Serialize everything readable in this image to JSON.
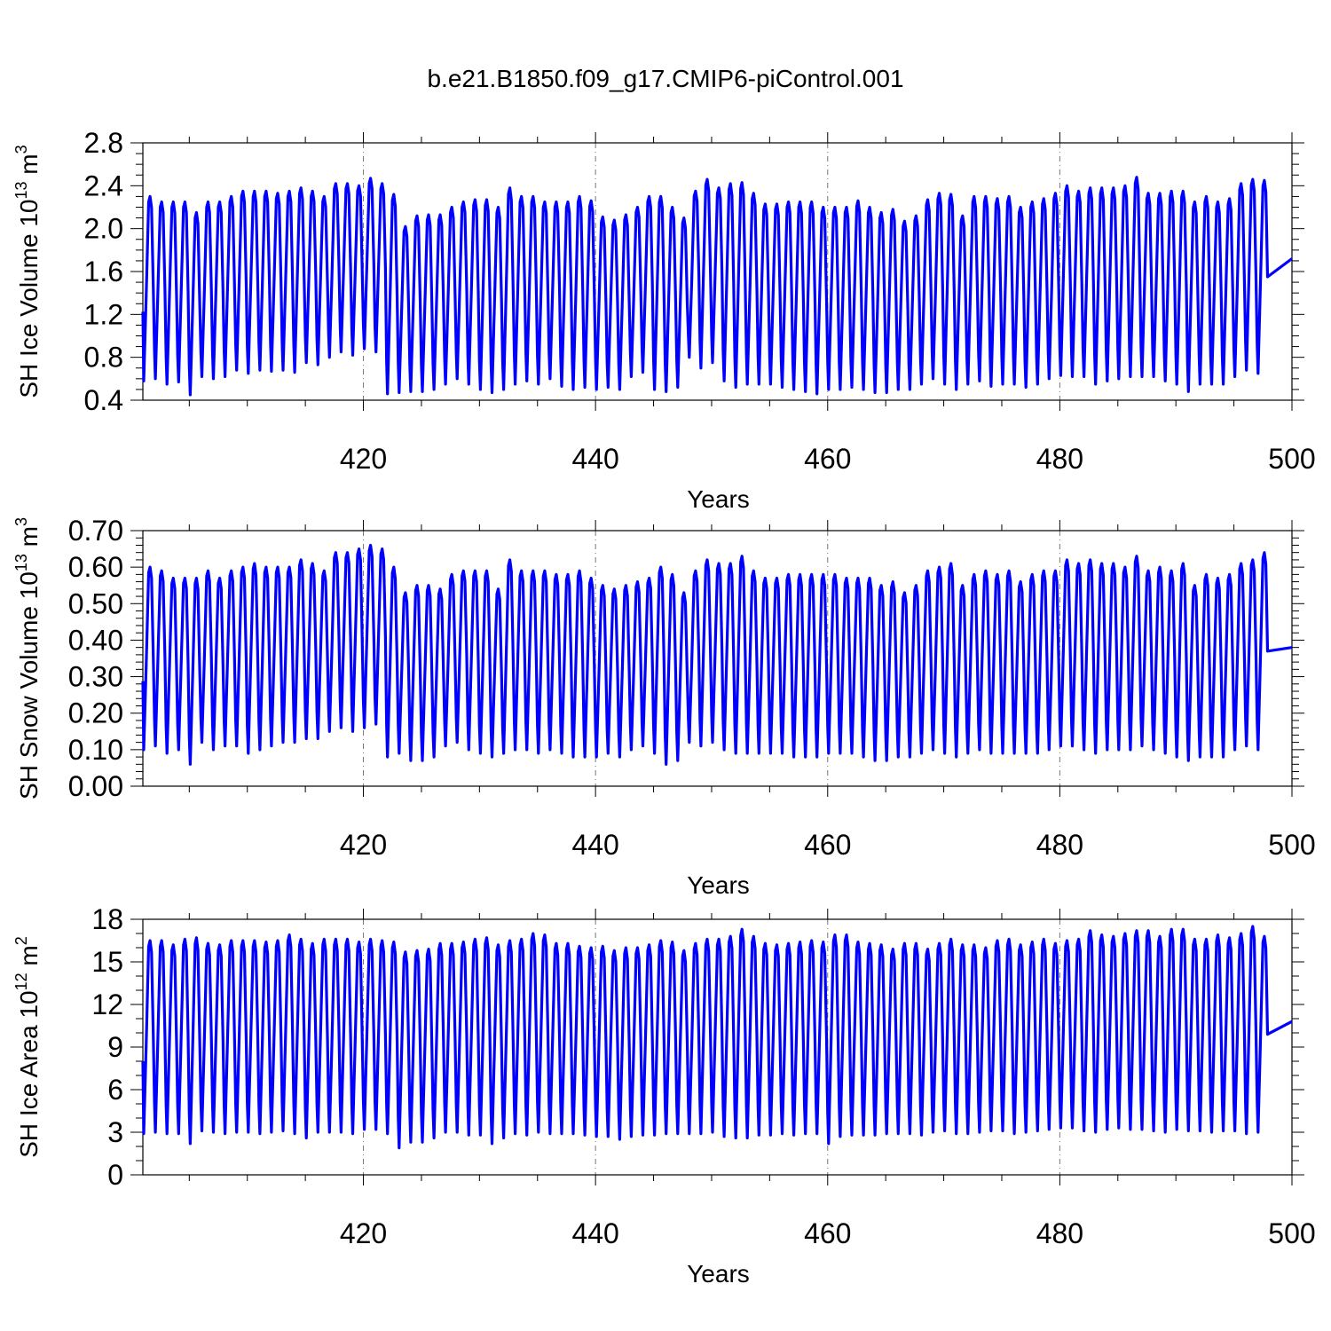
{
  "title": "b.e21.B1850.f09_g17.CMIP6-piControl.001",
  "colors": {
    "series": "#0000ff",
    "grid": "#777777",
    "axes": "#000000"
  },
  "chart_data": [
    {
      "type": "line",
      "xlabel": "Years",
      "ylabel_main": "SH Ice Volume 10",
      "ylabel_exp": "13",
      "ylabel_unit": " m",
      "ylabel_unit_exp": "3",
      "xlim": [
        401,
        500
      ],
      "ylim": [
        0.4,
        2.8
      ],
      "xticks": [
        420,
        440,
        460,
        480,
        500
      ],
      "yticks": [
        0.4,
        0.8,
        1.2,
        1.6,
        2.0,
        2.4,
        2.8
      ],
      "ytick_labels": [
        "0.4",
        "0.8",
        "1.2",
        "1.6",
        "2.0",
        "2.4",
        "2.8"
      ],
      "yminor_step": 0.1,
      "grid": "vertical dashed at major x ticks",
      "series": [
        {
          "start_year": 401,
          "annual_max": [
            2.3,
            2.25,
            2.25,
            2.25,
            2.15,
            2.25,
            2.25,
            2.3,
            2.35,
            2.35,
            2.35,
            2.33,
            2.35,
            2.38,
            2.35,
            2.3,
            2.42,
            2.42,
            2.4,
            2.47,
            2.42,
            2.32,
            2.02,
            2.12,
            2.13,
            2.13,
            2.2,
            2.25,
            2.27,
            2.27,
            2.2,
            2.38,
            2.3,
            2.3,
            2.25,
            2.25,
            2.25,
            2.3,
            2.26,
            2.11,
            2.08,
            2.13,
            2.2,
            2.3,
            2.3,
            2.2,
            2.1,
            2.35,
            2.46,
            2.38,
            2.42,
            2.43,
            2.33,
            2.23,
            2.23,
            2.25,
            2.25,
            2.25,
            2.2,
            2.2,
            2.2,
            2.26,
            2.2,
            2.15,
            2.18,
            2.07,
            2.12,
            2.27,
            2.33,
            2.32,
            2.12,
            2.3,
            2.3,
            2.28,
            2.3,
            2.2,
            2.25,
            2.28,
            2.33,
            2.4,
            2.35,
            2.38,
            2.38,
            2.38,
            2.4,
            2.48,
            2.33,
            2.33,
            2.35,
            2.35,
            2.25,
            2.3,
            2.25,
            2.28,
            2.42,
            2.46,
            2.45
          ],
          "annual_min": [
            0.58,
            0.6,
            0.55,
            0.57,
            0.45,
            0.62,
            0.6,
            0.62,
            0.68,
            0.65,
            0.68,
            0.67,
            0.68,
            0.66,
            0.75,
            0.73,
            0.8,
            0.85,
            0.82,
            0.88,
            0.85,
            0.46,
            0.47,
            0.48,
            0.48,
            0.5,
            0.55,
            0.6,
            0.55,
            0.5,
            0.47,
            0.5,
            0.55,
            0.58,
            0.55,
            0.6,
            0.53,
            0.5,
            0.52,
            0.5,
            0.52,
            0.5,
            0.62,
            0.66,
            0.5,
            0.48,
            0.52,
            0.8,
            0.7,
            0.75,
            0.58,
            0.52,
            0.55,
            0.55,
            0.55,
            0.52,
            0.5,
            0.48,
            0.46,
            0.5,
            0.5,
            0.52,
            0.5,
            0.47,
            0.47,
            0.5,
            0.5,
            0.55,
            0.6,
            0.55,
            0.5,
            0.55,
            0.58,
            0.53,
            0.55,
            0.55,
            0.52,
            0.55,
            0.6,
            0.63,
            0.62,
            0.62,
            0.55,
            0.58,
            0.6,
            0.62,
            0.62,
            0.62,
            0.58,
            0.55,
            0.48,
            0.55,
            0.55,
            0.55,
            0.62,
            0.68,
            0.65
          ],
          "end_value": 1.72
        }
      ]
    },
    {
      "type": "line",
      "xlabel": "Years",
      "ylabel_main": "SH Snow Volume 10",
      "ylabel_exp": "13",
      "ylabel_unit": " m",
      "ylabel_unit_exp": "3",
      "xlim": [
        401,
        500
      ],
      "ylim": [
        0.0,
        0.7
      ],
      "xticks": [
        420,
        440,
        460,
        480,
        500
      ],
      "yticks": [
        0.0,
        0.1,
        0.2,
        0.3,
        0.4,
        0.5,
        0.6,
        0.7
      ],
      "ytick_labels": [
        "0.00",
        "0.10",
        "0.20",
        "0.30",
        "0.40",
        "0.50",
        "0.60",
        "0.70"
      ],
      "yminor_step": 0.02,
      "grid": "vertical dashed at major x ticks",
      "series": [
        {
          "start_year": 401,
          "annual_max": [
            0.6,
            0.59,
            0.57,
            0.57,
            0.57,
            0.59,
            0.57,
            0.59,
            0.6,
            0.61,
            0.6,
            0.6,
            0.6,
            0.62,
            0.61,
            0.59,
            0.64,
            0.64,
            0.65,
            0.66,
            0.65,
            0.6,
            0.53,
            0.55,
            0.55,
            0.54,
            0.58,
            0.59,
            0.59,
            0.59,
            0.54,
            0.62,
            0.59,
            0.59,
            0.59,
            0.58,
            0.58,
            0.59,
            0.57,
            0.55,
            0.54,
            0.55,
            0.56,
            0.57,
            0.6,
            0.58,
            0.53,
            0.59,
            0.62,
            0.61,
            0.61,
            0.63,
            0.59,
            0.57,
            0.57,
            0.58,
            0.58,
            0.58,
            0.58,
            0.58,
            0.57,
            0.57,
            0.57,
            0.55,
            0.56,
            0.53,
            0.55,
            0.59,
            0.6,
            0.61,
            0.55,
            0.58,
            0.59,
            0.58,
            0.59,
            0.56,
            0.58,
            0.59,
            0.59,
            0.62,
            0.61,
            0.62,
            0.61,
            0.61,
            0.6,
            0.63,
            0.59,
            0.6,
            0.59,
            0.61,
            0.55,
            0.58,
            0.57,
            0.58,
            0.61,
            0.62,
            0.64
          ],
          "annual_min": [
            0.1,
            0.11,
            0.09,
            0.1,
            0.06,
            0.12,
            0.1,
            0.11,
            0.11,
            0.09,
            0.1,
            0.11,
            0.12,
            0.12,
            0.13,
            0.13,
            0.15,
            0.16,
            0.15,
            0.16,
            0.17,
            0.08,
            0.09,
            0.07,
            0.07,
            0.08,
            0.11,
            0.12,
            0.1,
            0.09,
            0.08,
            0.09,
            0.1,
            0.1,
            0.09,
            0.1,
            0.09,
            0.08,
            0.08,
            0.08,
            0.09,
            0.08,
            0.1,
            0.11,
            0.09,
            0.06,
            0.07,
            0.12,
            0.11,
            0.12,
            0.1,
            0.09,
            0.09,
            0.09,
            0.09,
            0.09,
            0.08,
            0.08,
            0.08,
            0.09,
            0.09,
            0.09,
            0.08,
            0.07,
            0.07,
            0.08,
            0.08,
            0.09,
            0.1,
            0.09,
            0.08,
            0.09,
            0.1,
            0.09,
            0.09,
            0.09,
            0.09,
            0.09,
            0.1,
            0.11,
            0.11,
            0.1,
            0.09,
            0.1,
            0.1,
            0.1,
            0.11,
            0.1,
            0.09,
            0.08,
            0.07,
            0.08,
            0.08,
            0.08,
            0.1,
            0.11,
            0.1
          ],
          "end_value": 0.38
        }
      ]
    },
    {
      "type": "line",
      "xlabel": "Years",
      "ylabel_main": "SH Ice Area 10",
      "ylabel_exp": "12",
      "ylabel_unit": " m",
      "ylabel_unit_exp": "2",
      "xlim": [
        401,
        500
      ],
      "ylim": [
        0,
        18
      ],
      "xticks": [
        420,
        440,
        460,
        480,
        500
      ],
      "yticks": [
        0,
        3,
        6,
        9,
        12,
        15,
        18
      ],
      "ytick_labels": [
        "0",
        "3",
        "6",
        "9",
        "12",
        "15",
        "18"
      ],
      "yminor_step": 1,
      "grid": "vertical dashed at major x ticks",
      "series": [
        {
          "start_year": 401,
          "annual_max": [
            16.5,
            16.5,
            16.2,
            16.6,
            16.7,
            16.3,
            16.2,
            16.5,
            16.5,
            16.5,
            16.4,
            16.5,
            16.9,
            16.6,
            16.3,
            16.6,
            16.6,
            16.6,
            16.4,
            16.6,
            16.5,
            16.4,
            15.7,
            15.8,
            15.9,
            16.3,
            16.3,
            16.4,
            16.6,
            16.7,
            16.2,
            16.5,
            16.6,
            17.0,
            16.9,
            16.3,
            16.3,
            16.1,
            16.0,
            16.1,
            15.8,
            16.0,
            16.0,
            16.2,
            16.5,
            16.4,
            15.8,
            16.3,
            16.6,
            16.6,
            16.8,
            17.3,
            16.8,
            16.3,
            16.2,
            16.3,
            16.4,
            16.5,
            16.4,
            16.9,
            16.9,
            16.4,
            16.3,
            16.2,
            15.9,
            16.3,
            16.3,
            15.9,
            16.3,
            16.6,
            16.2,
            16.2,
            16.0,
            16.5,
            16.6,
            16.2,
            16.4,
            16.6,
            16.3,
            16.5,
            16.6,
            17.2,
            16.9,
            16.8,
            17.0,
            17.2,
            17.2,
            16.8,
            17.3,
            17.3,
            16.6,
            16.6,
            16.9,
            16.7,
            17.0,
            17.5,
            16.8
          ],
          "annual_min": [
            2.9,
            3.0,
            2.9,
            2.9,
            2.2,
            3.1,
            3.0,
            2.9,
            3.0,
            3.0,
            2.9,
            3.0,
            3.1,
            2.9,
            2.6,
            3.0,
            3.0,
            3.0,
            2.9,
            3.2,
            3.2,
            2.9,
            1.9,
            2.3,
            2.3,
            2.6,
            3.0,
            3.0,
            2.8,
            2.8,
            2.2,
            2.6,
            2.9,
            2.8,
            3.0,
            2.9,
            2.9,
            2.9,
            2.8,
            2.7,
            2.7,
            2.5,
            2.7,
            2.8,
            2.8,
            2.9,
            2.9,
            2.9,
            2.9,
            3.0,
            2.7,
            2.6,
            2.6,
            2.8,
            2.8,
            2.9,
            2.8,
            2.9,
            2.9,
            2.2,
            2.7,
            2.8,
            2.8,
            2.8,
            2.9,
            2.9,
            2.9,
            2.8,
            3.0,
            3.1,
            2.9,
            2.9,
            3.0,
            3.1,
            3.1,
            2.9,
            3.0,
            3.1,
            3.2,
            3.3,
            3.3,
            3.1,
            3.0,
            3.2,
            3.3,
            3.2,
            3.2,
            3.1,
            3.0,
            3.2,
            3.1,
            3.1,
            3.0,
            3.1,
            3.1,
            2.9,
            3.0
          ],
          "end_value": 10.8
        }
      ]
    }
  ]
}
